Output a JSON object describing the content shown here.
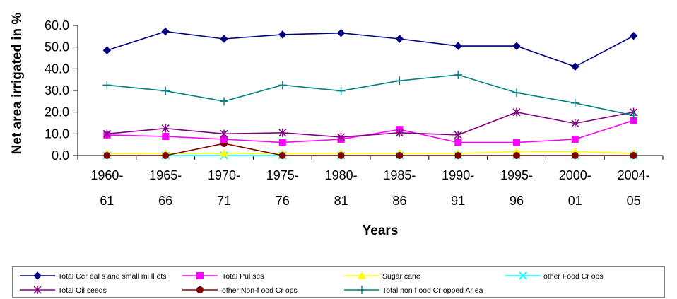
{
  "chart_data": {
    "type": "line",
    "title": "",
    "xlabel": "Years",
    "ylabel": "Net area irrigated in %",
    "ylim": [
      0,
      60
    ],
    "yticks": [
      "0.0",
      "10.0",
      "20.0",
      "30.0",
      "40.0",
      "50.0",
      "60.0"
    ],
    "categories": [
      [
        "1960-",
        "61"
      ],
      [
        "1965-",
        "66"
      ],
      [
        "1970-",
        "71"
      ],
      [
        "1975-",
        "76"
      ],
      [
        "1980-",
        "81"
      ],
      [
        "1985-",
        "86"
      ],
      [
        "1990-",
        "91"
      ],
      [
        "1995-",
        "96"
      ],
      [
        "2000-",
        "01"
      ],
      [
        "2004-",
        "05"
      ]
    ],
    "grid": false,
    "legend_position": "bottom",
    "series": [
      {
        "name": "Total Cereals and small millets",
        "color": "#000080",
        "marker": "diamond",
        "values": [
          48.5,
          57.2,
          53.8,
          55.8,
          56.5,
          53.8,
          50.5,
          50.5,
          41.0,
          55.2
        ]
      },
      {
        "name": "Total Pulses",
        "color": "#FF00FF",
        "marker": "square",
        "values": [
          9.5,
          8.8,
          7.5,
          6.0,
          7.5,
          12.0,
          6.0,
          6.0,
          7.5,
          16.2
        ]
      },
      {
        "name": "Sugar cane",
        "color": "#FFFF00",
        "marker": "triangle",
        "values": [
          0.8,
          1.0,
          1.0,
          1.0,
          1.0,
          1.0,
          1.0,
          1.8,
          1.8,
          1.0
        ]
      },
      {
        "name": "other Food Crops",
        "color": "#00FFFF",
        "marker": "x",
        "values": [
          0.0,
          0.0,
          0.0,
          0.0,
          0.0,
          0.0,
          0.0,
          0.0,
          0.0,
          0.0
        ]
      },
      {
        "name": "Total Oil seeds",
        "color": "#800080",
        "marker": "star",
        "values": [
          10.0,
          12.5,
          10.0,
          10.5,
          8.5,
          10.5,
          9.5,
          20.0,
          14.8,
          20.0
        ]
      },
      {
        "name": "other Non-food Crops",
        "color": "#800000",
        "marker": "circle",
        "values": [
          0.0,
          0.0,
          5.5,
          0.0,
          0.0,
          0.0,
          0.0,
          0.0,
          0.0,
          0.0
        ]
      },
      {
        "name": "Total non food Cropped Area",
        "color": "#008080",
        "marker": "plus",
        "values": [
          32.5,
          29.8,
          25.0,
          32.5,
          29.8,
          34.5,
          37.2,
          29.0,
          24.2,
          18.5
        ]
      }
    ]
  },
  "legend_labels": {
    "s0": "Total Cer eal s and small mi ll ets",
    "s1": "Total Pul ses",
    "s2": "Sugar cane",
    "s3": "other Food Cr ops",
    "s4": "Total Oil seeds",
    "s5": "other Non-f ood Cr ops",
    "s6": "Total non f ood Cr opped Ar ea"
  }
}
